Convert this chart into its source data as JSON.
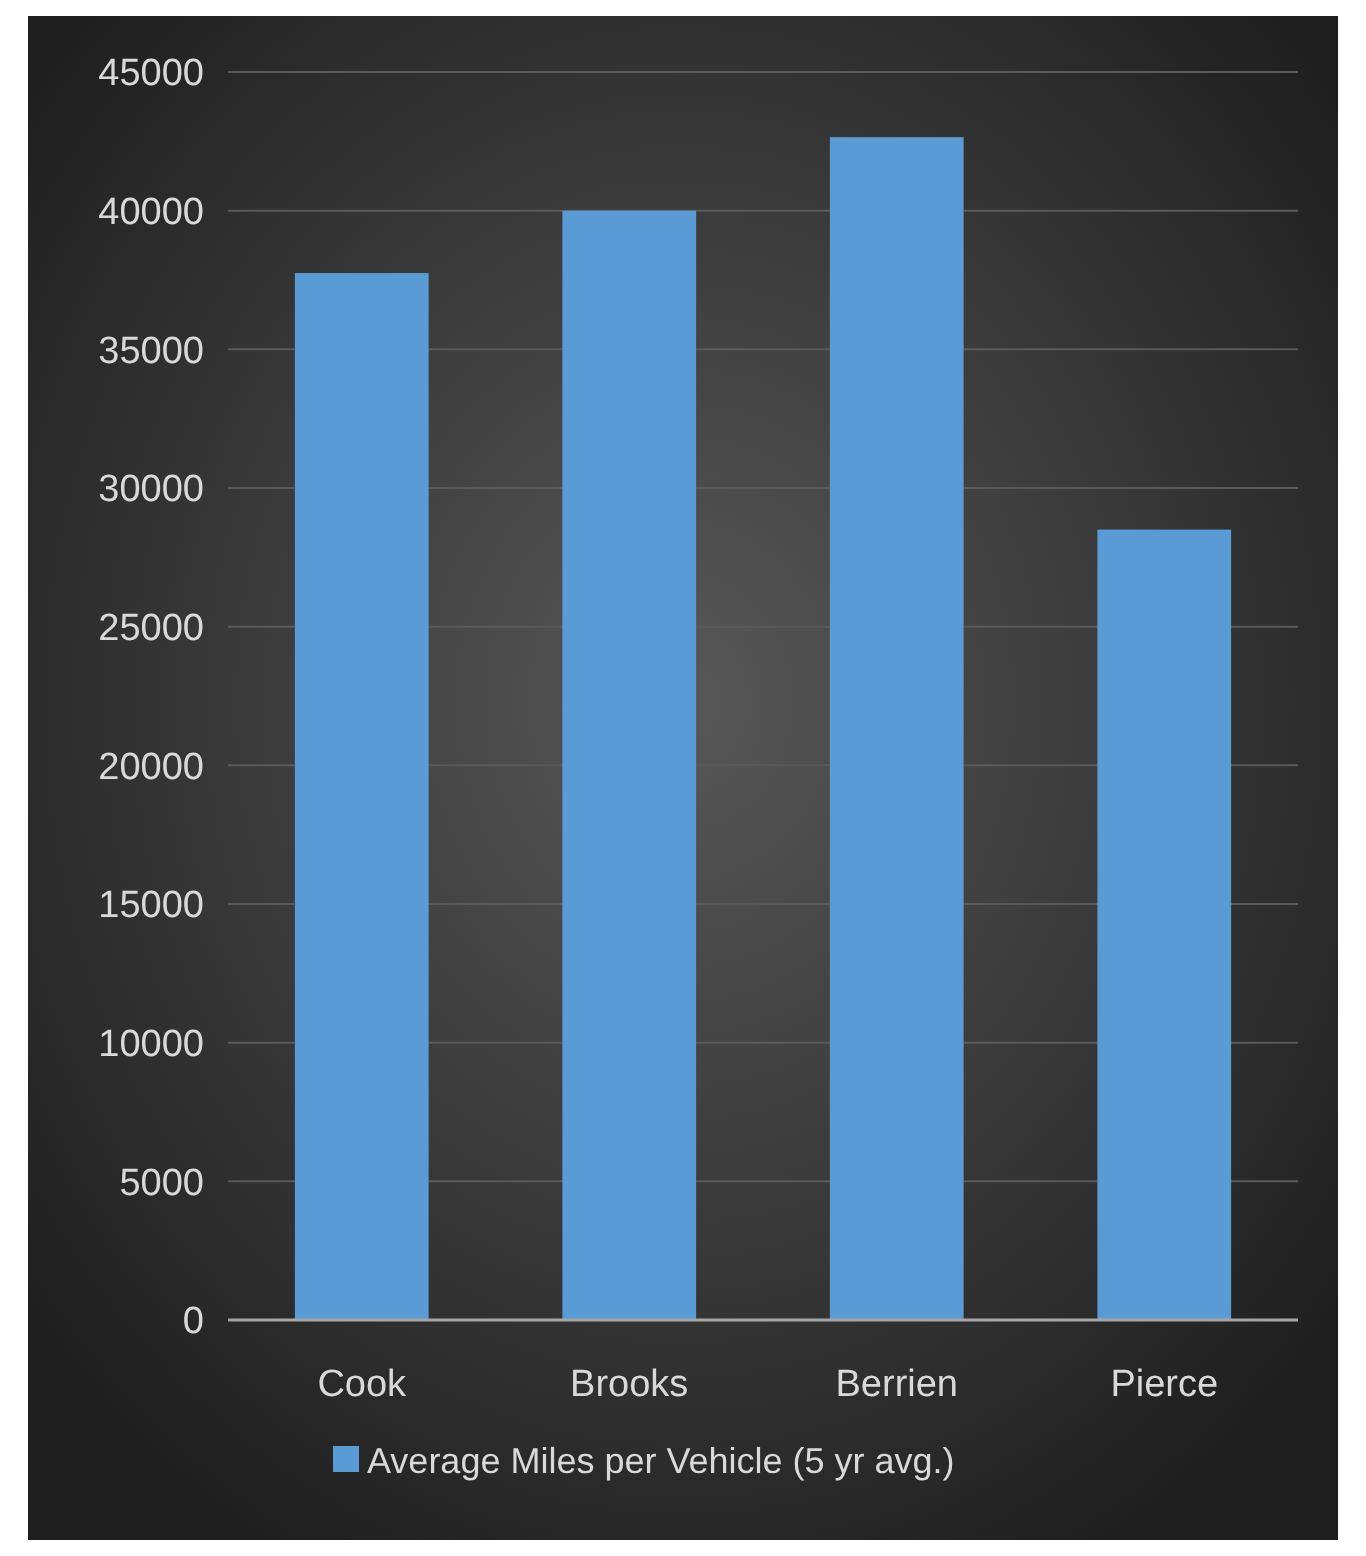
{
  "chart_data": {
    "type": "bar",
    "categories": [
      "Cook",
      "Brooks",
      "Berrien",
      "Pierce"
    ],
    "series": [
      {
        "name": "Average Miles per Vehicle (5 yr avg.)",
        "color": "#5b9bd5",
        "values": [
          37750,
          40000,
          42650,
          28500
        ]
      }
    ],
    "ylim": [
      0,
      45000
    ],
    "yticks": [
      0,
      5000,
      10000,
      15000,
      20000,
      25000,
      30000,
      35000,
      40000,
      45000
    ],
    "grid": "y",
    "legend": "bottom"
  }
}
